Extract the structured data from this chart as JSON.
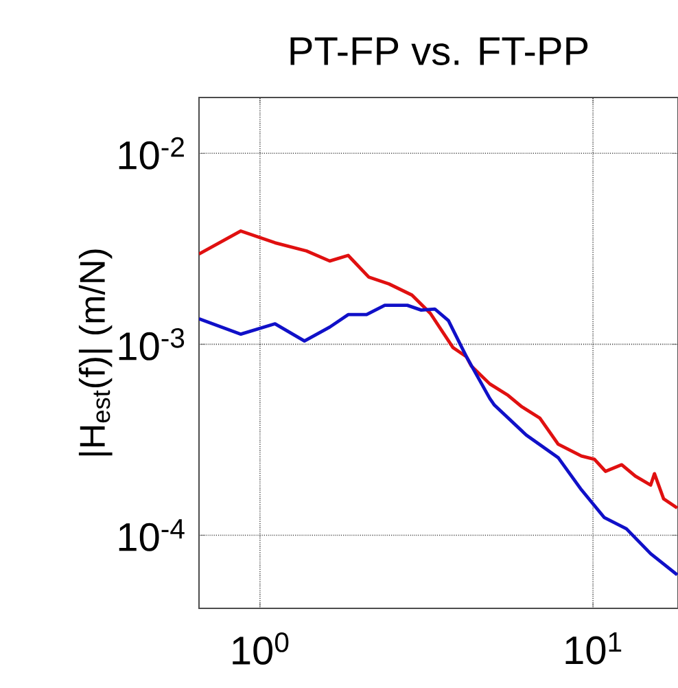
{
  "chart_data": {
    "type": "line",
    "title": "PT-FP vs. FT-PP",
    "ylabel": "|H$_{est}$(f)| (m/N)",
    "log": "xy",
    "grid": true,
    "xlim": [
      0.656,
      18
    ],
    "ylim": [
      4.14e-05,
      0.0196
    ],
    "xticks": [
      {
        "value": 1,
        "label": "10$^{0}$"
      },
      {
        "value": 10,
        "label": "10$^{1}$"
      }
    ],
    "yticks": [
      {
        "value": 0.0001,
        "label": "10$^{-4}$"
      },
      {
        "value": 0.001,
        "label": "10$^{-3}$"
      },
      {
        "value": 0.01,
        "label": "10$^{-2}$"
      }
    ],
    "series": [
      {
        "color": "#e01010",
        "x": [
          0.656,
          0.876,
          1.11,
          1.38,
          1.62,
          1.84,
          2.12,
          2.44,
          2.86,
          3.25,
          3.8,
          4.17,
          4.31,
          4.9,
          5.56,
          6.12,
          6.93,
          7.86,
          9.23,
          10.1,
          10.9,
          12.2,
          13.4,
          14.9,
          15.3,
          16.3,
          17.9
        ],
        "values": [
          0.00297,
          0.00392,
          0.0034,
          0.00308,
          0.00273,
          0.00292,
          0.00225,
          0.00207,
          0.00181,
          0.00145,
          0.00096,
          0.00086,
          0.00077,
          0.00062,
          0.00054,
          0.00047,
          0.00041,
          0.0003,
          0.00026,
          0.00025,
          0.000216,
          0.000234,
          0.000204,
          0.000183,
          0.00021,
          0.000155,
          0.000139
        ]
      },
      {
        "color": "#1010c8",
        "x": [
          0.656,
          0.876,
          1.11,
          1.36,
          1.62,
          1.84,
          2.09,
          2.37,
          2.77,
          3.05,
          3.35,
          3.68,
          4.17,
          4.9,
          5.06,
          6.3,
          7.86,
          9.23,
          10.8,
          12.6,
          14.9,
          17.9
        ],
        "values": [
          0.00136,
          0.00113,
          0.00128,
          0.00104,
          0.00123,
          0.00143,
          0.00143,
          0.0016,
          0.0016,
          0.00151,
          0.00153,
          0.00133,
          0.00086,
          0.00052,
          0.00048,
          0.000335,
          0.000255,
          0.000173,
          0.000124,
          0.000108,
          8e-05,
          6.2e-05
        ]
      }
    ]
  }
}
